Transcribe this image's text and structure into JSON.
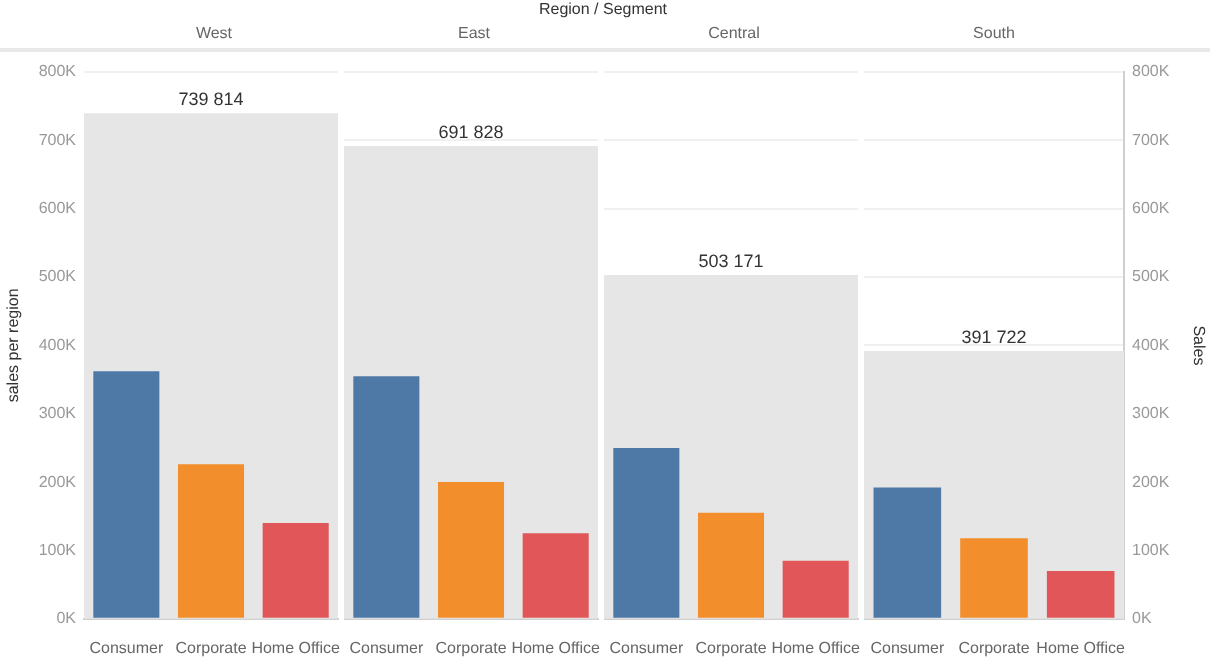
{
  "chart_data": [
    {
      "type": "bar",
      "title": "West",
      "annotations": [
        "Region / Segment"
      ],
      "ylabel": "sales per region",
      "categories": [
        "Consumer",
        "Corporate",
        "Home Office"
      ],
      "values": [
        362000,
        226000,
        140000
      ],
      "colors": [
        "#4e79a7",
        "#f28e2b",
        "#e15759"
      ],
      "ylim": [
        0,
        800000
      ],
      "yticks": [
        {
          "value": 0,
          "label": "0K"
        },
        {
          "value": 100000,
          "label": "100K"
        },
        {
          "value": 200000,
          "label": "200K"
        },
        {
          "value": 300000,
          "label": "300K"
        },
        {
          "value": 400000,
          "label": "400K"
        },
        {
          "value": 500000,
          "label": "500K"
        },
        {
          "value": 600000,
          "label": "600K"
        },
        {
          "value": 700000,
          "label": "700K"
        },
        {
          "value": 800000,
          "label": "800K"
        }
      ],
      "bands": [
        {
          "axis": "y",
          "from": 0,
          "to": 739814,
          "label": "739 814",
          "color": "#e6e6e6"
        }
      ],
      "grid": "y"
    },
    {
      "type": "bar",
      "title": "East",
      "categories": [
        "Consumer",
        "Corporate",
        "Home Office"
      ],
      "values": [
        355000,
        200000,
        125000
      ],
      "colors": [
        "#4e79a7",
        "#f28e2b",
        "#e15759"
      ],
      "ylim": [
        0,
        800000
      ],
      "yticks": [
        0,
        100000,
        200000,
        300000,
        400000,
        500000,
        600000,
        700000,
        800000
      ],
      "tick_labels": "x",
      "bands": [
        {
          "axis": "y",
          "from": 0,
          "to": 691828,
          "label": "691 828",
          "color": "#e6e6e6"
        }
      ],
      "grid": "y"
    },
    {
      "type": "bar",
      "title": "Central",
      "categories": [
        "Consumer",
        "Corporate",
        "Home Office"
      ],
      "values": [
        250000,
        155000,
        85000
      ],
      "colors": [
        "#4e79a7",
        "#f28e2b",
        "#e15759"
      ],
      "ylim": [
        0,
        800000
      ],
      "yticks": [
        0,
        100000,
        200000,
        300000,
        400000,
        500000,
        600000,
        700000,
        800000
      ],
      "tick_labels": "x",
      "bands": [
        {
          "axis": "y",
          "from": 0,
          "to": 503171,
          "label": "503 171",
          "color": "#e6e6e6"
        }
      ],
      "grid": "y"
    },
    {
      "type": "bar",
      "title": "South",
      "y2label": "Sales",
      "categories": [
        "Consumer",
        "Corporate",
        "Home Office"
      ],
      "series": [
        {
          "values": [
            192000,
            118000,
            70000
          ],
          "axis": "y2"
        }
      ],
      "colors": [
        "#4e79a7",
        "#f28e2b",
        "#e15759"
      ],
      "y2lim": [
        0,
        800000
      ],
      "y2ticks": [
        {
          "value": 0,
          "label": "0K"
        },
        {
          "value": 100000,
          "label": "100K"
        },
        {
          "value": 200000,
          "label": "200K"
        },
        {
          "value": 300000,
          "label": "300K"
        },
        {
          "value": 400000,
          "label": "400K"
        },
        {
          "value": 500000,
          "label": "500K"
        },
        {
          "value": 600000,
          "label": "600K"
        },
        {
          "value": 700000,
          "label": "700K"
        },
        {
          "value": 800000,
          "label": "800K"
        }
      ],
      "bands": [
        {
          "axis": "y2",
          "from": 0,
          "to": 391722,
          "label": "391 722",
          "color": "#e6e6e6"
        }
      ],
      "grid": "y"
    }
  ]
}
